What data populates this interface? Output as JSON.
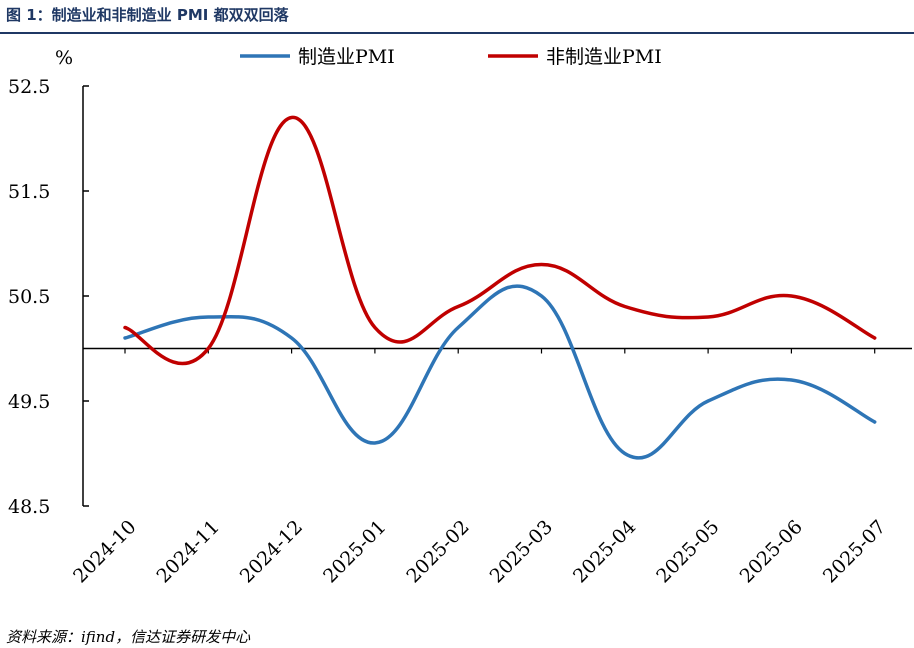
{
  "figure": {
    "title": "图 1：制造业和非制造业 PMI 都双双回落",
    "source": "资料来源：ifind，信达证券研发中心"
  },
  "chart_data": {
    "type": "line",
    "unit_label": "%",
    "categories": [
      "2024-10",
      "2024-11",
      "2024-12",
      "2025-01",
      "2025-02",
      "2025-03",
      "2025-04",
      "2025-05",
      "2025-06",
      "2025-07"
    ],
    "series": [
      {
        "name": "制造业PMI",
        "color": "#2e75b6",
        "values": [
          50.1,
          50.3,
          50.1,
          49.1,
          50.2,
          50.5,
          49.0,
          49.5,
          49.7,
          49.3
        ]
      },
      {
        "name": "非制造业PMI",
        "color": "#c00000",
        "values": [
          50.2,
          50.0,
          52.2,
          50.2,
          50.4,
          50.8,
          50.4,
          50.3,
          50.5,
          50.1
        ]
      }
    ],
    "y_ticks": [
      "52.5",
      "51.5",
      "50.5",
      "49.5",
      "48.5"
    ],
    "ylim": [
      48.5,
      52.5
    ],
    "baseline": 50,
    "grid": false,
    "legend_position": "top"
  }
}
